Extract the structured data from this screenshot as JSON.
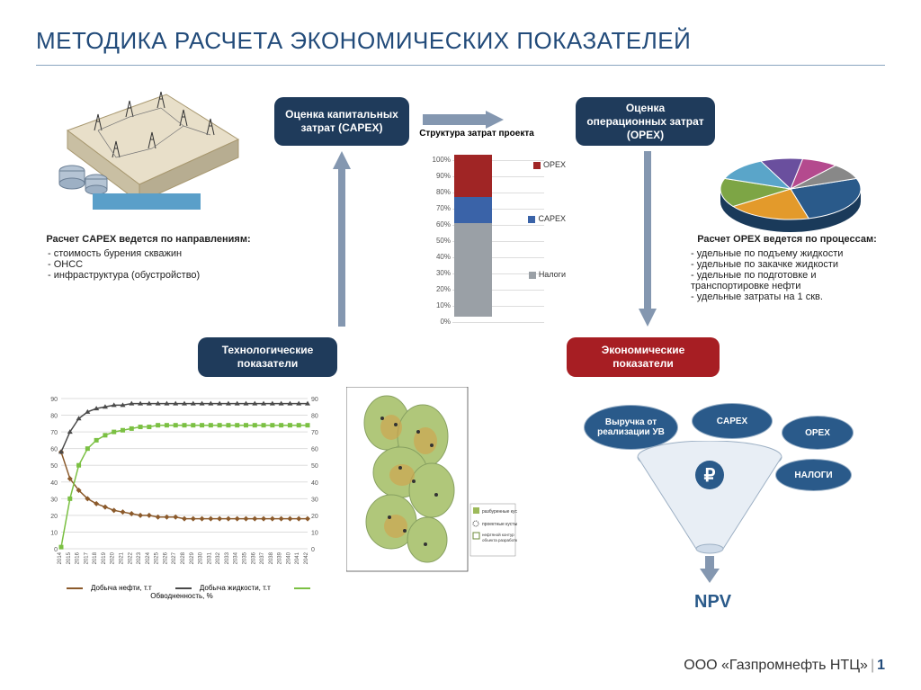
{
  "title": "МЕТОДИКА РАСЧЕТА ЭКОНОМИЧЕСКИХ ПОКАЗАТЕЛЕЙ",
  "footer_company": "ООО «Газпромнефть НТЦ»",
  "footer_page": "1",
  "colors": {
    "navy": "#1f3b5b",
    "navy2": "#2a5a8a",
    "red": "#a71e23",
    "arrow": "#8497b0",
    "title": "#224b7a"
  },
  "boxes": {
    "capex": "Оценка капитальных затрат (CAPEX)",
    "opex": "Оценка операционных затрат (OPEX)",
    "tech": "Технологические показатели",
    "econ": "Экономические показатели"
  },
  "capex_text": {
    "header": "Расчет CAPEX ведется по направлениям:",
    "items": [
      "стоимость бурения скважин",
      "ОНСС",
      "инфраструктура (обустройство)"
    ]
  },
  "opex_text": {
    "header": "Расчет OPEX ведется по процессам:",
    "items": [
      "удельные по подъему жидкости",
      "удельные по закачке жидкости",
      "удельные по подготовке и транспортировке нефти",
      "удельные затраты на 1 скв."
    ]
  },
  "stacked_bar": {
    "title": "Структура затрат проекта",
    "y_ticks": [
      "0%",
      "10%",
      "20%",
      "30%",
      "40%",
      "50%",
      "60%",
      "70%",
      "80%",
      "90%",
      "100%"
    ],
    "segments": [
      {
        "label": "Налоги",
        "color": "#9aa0a6",
        "pct": 58
      },
      {
        "label": "CAPEX",
        "color": "#3a63a8",
        "pct": 16
      },
      {
        "label": "OPEX",
        "color": "#a02525",
        "pct": 26
      }
    ],
    "legend": [
      {
        "label": "OPEX",
        "color": "#a02525"
      },
      {
        "label": "CAPEX",
        "color": "#3a63a8"
      },
      {
        "label": "Налоги",
        "color": "#9aa0a6"
      }
    ]
  },
  "pie": {
    "slices": [
      {
        "color": "#2a5a8a",
        "angle": 95
      },
      {
        "color": "#e39a2b",
        "angle": 70
      },
      {
        "color": "#7da545",
        "angle": 55
      },
      {
        "color": "#5aa5c9",
        "angle": 45
      },
      {
        "color": "#6a4f9e",
        "angle": 35
      },
      {
        "color": "#b44a8e",
        "angle": 30
      },
      {
        "color": "#888888",
        "angle": 30
      }
    ]
  },
  "linechart": {
    "y_left": {
      "min": 0,
      "max": 90,
      "step": 10
    },
    "y_right": {
      "min": 0,
      "max": 90,
      "step": 10
    },
    "x_start": 2014,
    "x_end": 2042,
    "series": [
      {
        "name": "Добыча нефти, т.т",
        "color": "#8b5a2b",
        "marker": "diamond",
        "y": [
          58,
          42,
          35,
          30,
          27,
          25,
          23,
          22,
          21,
          20,
          20,
          19,
          19,
          19,
          18,
          18,
          18,
          18,
          18,
          18,
          18,
          18,
          18,
          18,
          18,
          18,
          18,
          18,
          18
        ]
      },
      {
        "name": "Добыча жидкости, т.т",
        "color": "#4a4a4a",
        "marker": "triangle",
        "y": [
          58,
          70,
          78,
          82,
          84,
          85,
          86,
          86,
          87,
          87,
          87,
          87,
          87,
          87,
          87,
          87,
          87,
          87,
          87,
          87,
          87,
          87,
          87,
          87,
          87,
          87,
          87,
          87,
          87
        ]
      },
      {
        "name": "Обводненность, %",
        "color": "#7bc043",
        "marker": "square",
        "y": [
          1,
          30,
          50,
          60,
          65,
          68,
          70,
          71,
          72,
          73,
          73,
          74,
          74,
          74,
          74,
          74,
          74,
          74,
          74,
          74,
          74,
          74,
          74,
          74,
          74,
          74,
          74,
          74,
          74
        ]
      }
    ],
    "legend": [
      {
        "label": "Добыча нефти, т.т",
        "color": "#8b5a2b"
      },
      {
        "label": "Добыча жидкости, т.т",
        "color": "#4a4a4a"
      },
      {
        "label": "Обводненность, %",
        "color": "#7bc043"
      }
    ]
  },
  "funnel": {
    "ovals": [
      {
        "label": "Выручка от реализации УВ"
      },
      {
        "label": "CAPEX"
      },
      {
        "label": "OPEX"
      },
      {
        "label": "НАЛОГИ"
      }
    ],
    "npv": "NPV"
  },
  "map_legend": [
    "разбуренные кусты",
    "проектные кусты",
    "нефтяной контур объекта разработки"
  ]
}
